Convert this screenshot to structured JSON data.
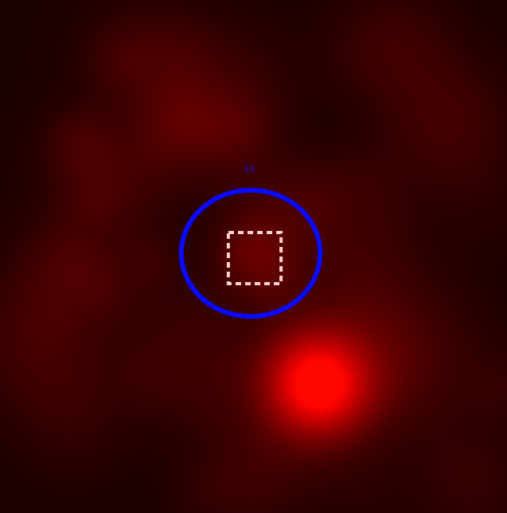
{
  "image": {
    "kind": "false-color astronomical cutout",
    "colormap": "black-to-red"
  },
  "markers": {
    "source_label": "13",
    "ellipse_color": "#0a0aff",
    "box_color": "#ffd0d0",
    "box_style": "dashed"
  }
}
